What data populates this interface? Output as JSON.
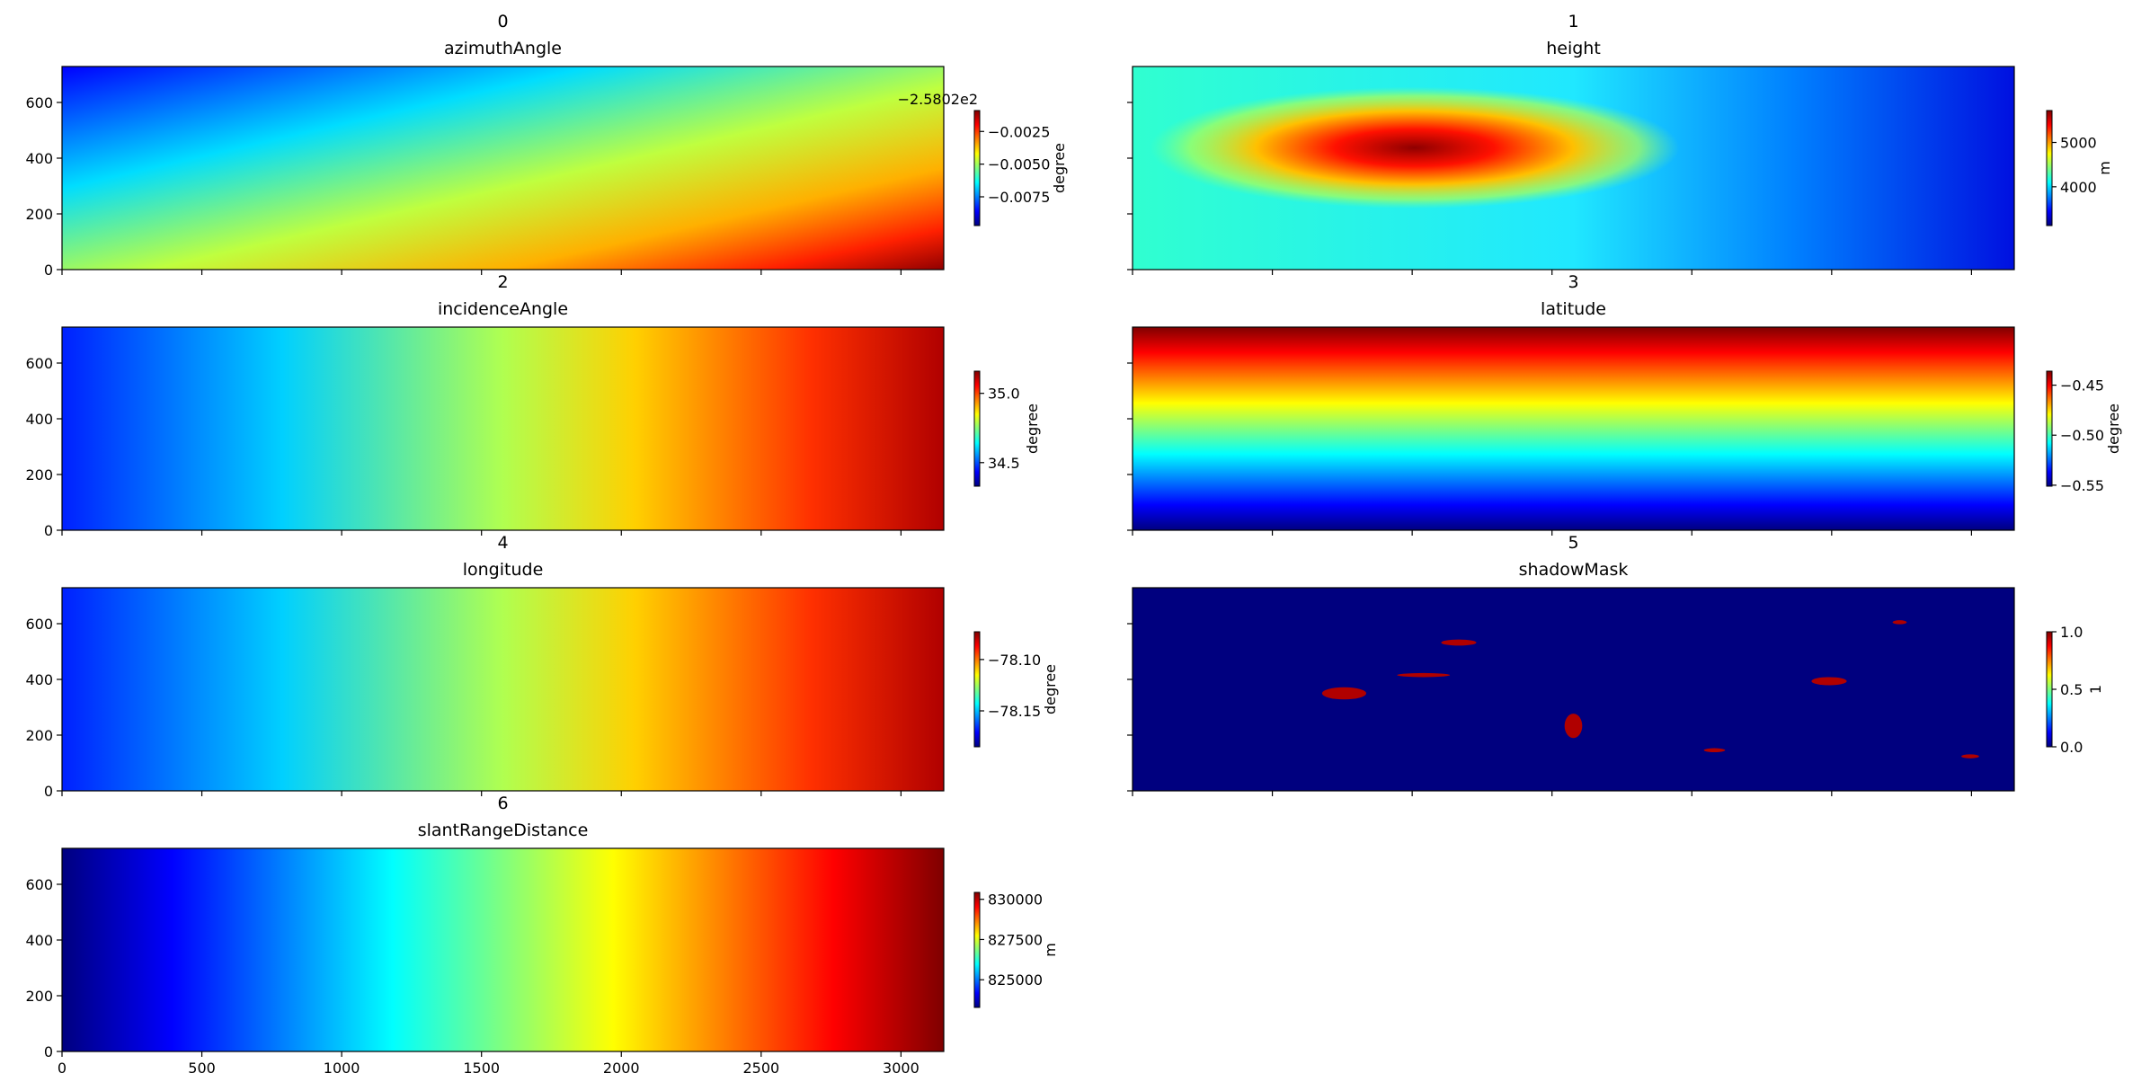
{
  "chart_data": [
    {
      "type": "heatmap",
      "title": "0",
      "subtitle": "azimuthAngle",
      "xlim": [
        0,
        3153
      ],
      "ylim": [
        0,
        729
      ],
      "xticks": [
        0,
        500,
        1000,
        1500,
        2000,
        2500,
        3000
      ],
      "yticks": [
        0,
        200,
        400,
        600
      ],
      "show_xticklabels": false,
      "show_yticklabels": true,
      "colorbar": {
        "label": "degree",
        "offset_text": "−2.5802e2",
        "clim": [
          -0.0097,
          -0.0009
        ],
        "ticks": [
          {
            "value": -0.0025,
            "label": "−0.0025"
          },
          {
            "value": -0.005,
            "label": "−0.0050"
          },
          {
            "value": -0.0075,
            "label": "−0.0075"
          }
        ]
      }
    },
    {
      "type": "heatmap",
      "title": "1",
      "subtitle": "height",
      "xlim": [
        0,
        3153
      ],
      "ylim": [
        0,
        729
      ],
      "xticks": [
        0,
        500,
        1000,
        1500,
        2000,
        2500,
        3000
      ],
      "yticks": [
        0,
        200,
        400,
        600
      ],
      "show_xticklabels": false,
      "show_yticklabels": false,
      "colorbar": {
        "label": "m",
        "clim": [
          3125,
          5720
        ],
        "ticks": [
          4000,
          5000
        ]
      }
    },
    {
      "type": "heatmap",
      "title": "2",
      "subtitle": "incidenceAngle",
      "xlim": [
        0,
        3153
      ],
      "ylim": [
        0,
        729
      ],
      "xticks": [
        0,
        500,
        1000,
        1500,
        2000,
        2500,
        3000
      ],
      "yticks": [
        0,
        200,
        400,
        600
      ],
      "show_xticklabels": false,
      "show_yticklabels": true,
      "colorbar": {
        "label": "degree",
        "clim": [
          34.33,
          35.16
        ],
        "ticks": [
          34.5,
          {
            "value": 35,
            "label": "35.0"
          }
        ]
      }
    },
    {
      "type": "heatmap",
      "title": "3",
      "subtitle": "latitude",
      "xlim": [
        0,
        3153
      ],
      "ylim": [
        0,
        729
      ],
      "xticks": [
        0,
        500,
        1000,
        1500,
        2000,
        2500,
        3000
      ],
      "yticks": [
        0,
        200,
        400,
        600
      ],
      "show_xticklabels": false,
      "show_yticklabels": false,
      "colorbar": {
        "label": "degree",
        "clim": [
          -0.551,
          -0.436
        ],
        "ticks": [
          {
            "value": -0.55,
            "label": "−0.55"
          },
          {
            "value": -0.5,
            "label": "−0.50"
          },
          {
            "value": -0.45,
            "label": "−0.45"
          }
        ]
      }
    },
    {
      "type": "heatmap",
      "title": "4",
      "subtitle": "longitude",
      "xlim": [
        0,
        3153
      ],
      "ylim": [
        0,
        729
      ],
      "xticks": [
        0,
        500,
        1000,
        1500,
        2000,
        2500,
        3000
      ],
      "yticks": [
        0,
        200,
        400,
        600
      ],
      "show_xticklabels": false,
      "show_yticklabels": true,
      "colorbar": {
        "label": "degree",
        "clim": [
          -78.185,
          -78.073
        ],
        "ticks": [
          {
            "value": -78.15,
            "label": "−78.15"
          },
          {
            "value": -78.1,
            "label": "−78.10"
          }
        ]
      }
    },
    {
      "type": "heatmap",
      "title": "5",
      "subtitle": "shadowMask",
      "xlim": [
        0,
        3153
      ],
      "ylim": [
        0,
        729
      ],
      "xticks": [
        0,
        500,
        1000,
        1500,
        2000,
        2500,
        3000
      ],
      "yticks": [
        0,
        200,
        400,
        600
      ],
      "show_xticklabels": false,
      "show_yticklabels": false,
      "colorbar": {
        "label": "1",
        "clim": [
          0,
          1
        ],
        "ticks": [
          {
            "value": 0,
            "label": "0.0"
          },
          0.5,
          {
            "value": 1,
            "label": "1.0"
          }
        ]
      }
    },
    {
      "type": "heatmap",
      "title": "6",
      "subtitle": "slantRangeDistance",
      "xlim": [
        0,
        3153
      ],
      "ylim": [
        0,
        729
      ],
      "xticks": [
        0,
        500,
        1000,
        1500,
        2000,
        2500,
        3000
      ],
      "yticks": [
        0,
        200,
        400,
        600
      ],
      "show_xticklabels": true,
      "show_yticklabels": true,
      "colorbar": {
        "label": "m",
        "clim": [
          823280,
          830430
        ],
        "ticks": [
          825000,
          827500,
          830000
        ]
      }
    }
  ]
}
